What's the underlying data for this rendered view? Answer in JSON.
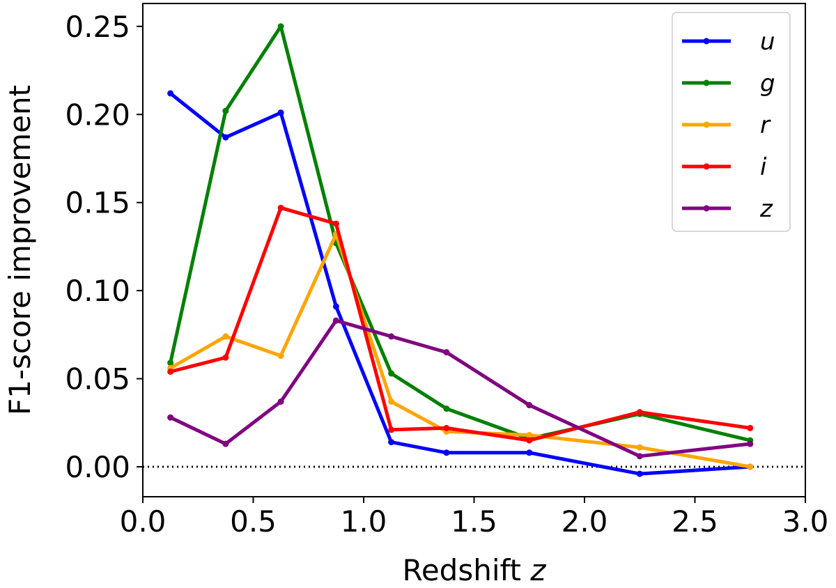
{
  "chart_data": {
    "type": "line",
    "title": "",
    "xlabel": "Redshift ",
    "xlabel_var": "z",
    "ylabel": "F1-score improvement",
    "xlim": [
      0.0,
      3.0
    ],
    "ylim": [
      -0.017,
      0.263
    ],
    "xticks": [
      "0.0",
      "0.5",
      "1.0",
      "1.5",
      "2.0",
      "2.5",
      "3.0"
    ],
    "yticks": [
      "0.00",
      "0.05",
      "0.10",
      "0.15",
      "0.20",
      "0.25"
    ],
    "grid": false,
    "legend_position": "top-right",
    "reference_line": {
      "y": 0.0,
      "style": "dotted"
    },
    "x": [
      0.125,
      0.375,
      0.625,
      0.875,
      1.125,
      1.375,
      1.75,
      2.25,
      2.75
    ],
    "series": [
      {
        "name": "u",
        "color": "#0000ff",
        "values": [
          0.212,
          0.187,
          0.201,
          0.091,
          0.014,
          0.008,
          0.008,
          -0.004,
          0.0
        ]
      },
      {
        "name": "g",
        "color": "#008000",
        "values": [
          0.059,
          0.202,
          0.25,
          0.127,
          0.053,
          0.033,
          0.016,
          0.03,
          0.015
        ]
      },
      {
        "name": "r",
        "color": "#ffa500",
        "values": [
          0.056,
          0.074,
          0.063,
          0.132,
          0.037,
          0.02,
          0.018,
          0.011,
          0.0
        ]
      },
      {
        "name": "i",
        "color": "#ff0000",
        "values": [
          0.054,
          0.062,
          0.147,
          0.138,
          0.021,
          0.022,
          0.015,
          0.031,
          0.022
        ]
      },
      {
        "name": "z",
        "color": "#800080",
        "values": [
          0.028,
          0.013,
          0.037,
          0.083,
          0.074,
          0.065,
          0.035,
          0.006,
          0.013
        ]
      }
    ]
  }
}
